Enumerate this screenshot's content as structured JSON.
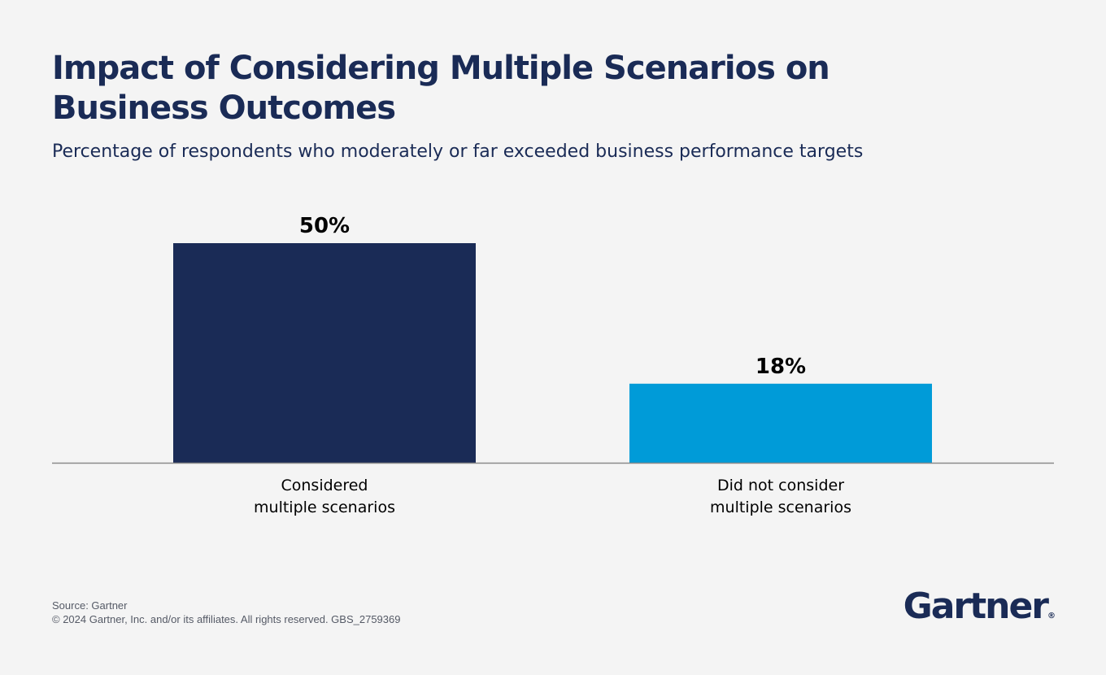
{
  "header": {
    "title": "Impact of Considering Multiple Scenarios on Business Outcomes",
    "subtitle": "Percentage of respondents who moderately or far exceeded business performance targets"
  },
  "chart_data": {
    "type": "bar",
    "title": "Impact of Considering Multiple Scenarios on Business Outcomes",
    "subtitle": "Percentage of respondents who moderately or far exceeded business performance targets",
    "categories": [
      [
        "Considered",
        "multiple scenarios"
      ],
      [
        "Did not consider",
        "multiple scenarios"
      ]
    ],
    "values": [
      50,
      18
    ],
    "value_labels": [
      "50%",
      "18%"
    ],
    "colors": [
      "#1a2b56",
      "#009bd8"
    ],
    "ylim": [
      0,
      50
    ],
    "grid": false,
    "legend": "none"
  },
  "footer": {
    "source": "Source: Gartner",
    "copyright": "© 2024 Gartner, Inc. and/or its affiliates. All rights reserved. GBS_2759369"
  },
  "brand": {
    "logo_text": "Gartner",
    "registered_mark": "®"
  }
}
